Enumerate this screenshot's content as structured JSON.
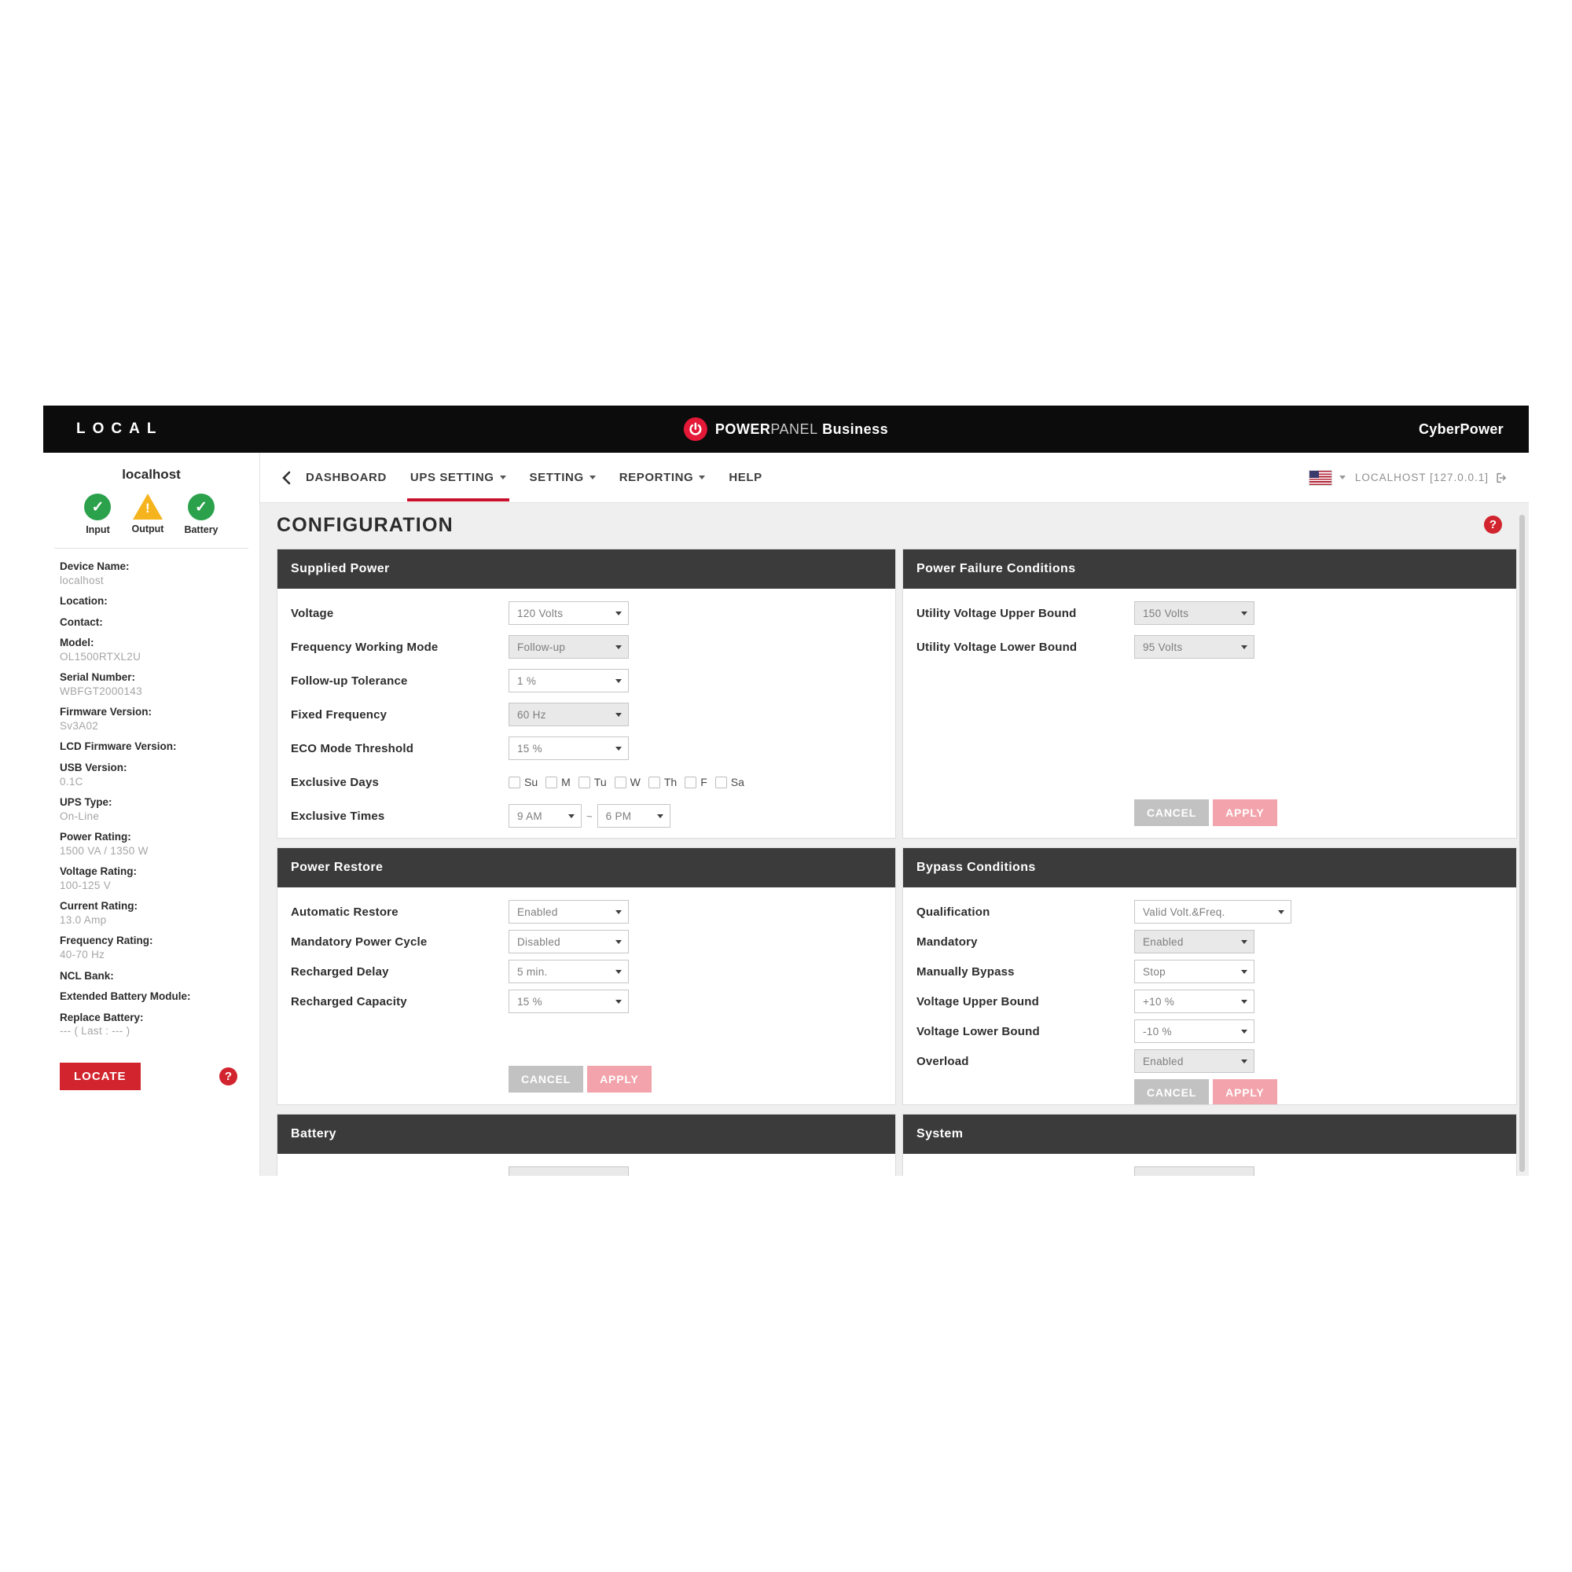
{
  "header": {
    "local": "LOCAL",
    "logo_power": "POWER",
    "logo_panel": "PANEL",
    "logo_business": " Business",
    "brand": "CyberPower"
  },
  "nav": {
    "items": [
      {
        "label": "DASHBOARD",
        "caret": false,
        "active": false
      },
      {
        "label": "UPS SETTING",
        "caret": true,
        "active": true
      },
      {
        "label": "SETTING",
        "caret": true,
        "active": false
      },
      {
        "label": "REPORTING",
        "caret": true,
        "active": false
      },
      {
        "label": "HELP",
        "caret": false,
        "active": false
      }
    ],
    "host": "LOCALHOST [127.0.0.1]",
    "flag_icon": "us-flag",
    "logout_icon": "logout"
  },
  "sidebar": {
    "device_title": "localhost",
    "statuses": [
      {
        "label": "Input",
        "state": "ok"
      },
      {
        "label": "Output",
        "state": "warning"
      },
      {
        "label": "Battery",
        "state": "ok"
      }
    ],
    "info": [
      {
        "label": "Device Name:",
        "value": "localhost"
      },
      {
        "label": "Location:",
        "value": ""
      },
      {
        "label": "Contact:",
        "value": ""
      },
      {
        "label": "Model:",
        "value": "OL1500RTXL2U"
      },
      {
        "label": "Serial Number:",
        "value": "WBFGT2000143"
      },
      {
        "label": "Firmware Version:",
        "value": "Sv3A02"
      },
      {
        "label": "LCD Firmware Version:",
        "value": ""
      },
      {
        "label": "USB Version:",
        "value": "0.1C"
      },
      {
        "label": "UPS Type:",
        "value": "On-Line"
      },
      {
        "label": "Power Rating:",
        "value": "1500 VA / 1350 W"
      },
      {
        "label": "Voltage Rating:",
        "value": "100-125 V"
      },
      {
        "label": "Current Rating:",
        "value": "13.0 Amp"
      },
      {
        "label": "Frequency Rating:",
        "value": "40-70 Hz"
      },
      {
        "label": "NCL Bank:",
        "value": ""
      },
      {
        "label": "Extended Battery Module:",
        "value": ""
      },
      {
        "label": "Replace Battery:",
        "value": "--- ( Last : --- )"
      }
    ],
    "locate_label": "LOCATE"
  },
  "main": {
    "title": "CONFIGURATION",
    "buttons": {
      "cancel": "CANCEL",
      "apply": "APPLY"
    },
    "panels": [
      {
        "title": "Supplied Power",
        "fields": [
          {
            "type": "select",
            "label": "Voltage",
            "value": "120 Volts",
            "disabled": false
          },
          {
            "type": "select",
            "label": "Frequency Working Mode",
            "value": "Follow-up",
            "disabled": true
          },
          {
            "type": "select",
            "label": "Follow-up Tolerance",
            "value": "1 %",
            "disabled": false
          },
          {
            "type": "select",
            "label": "Fixed Frequency",
            "value": "60 Hz",
            "disabled": true
          },
          {
            "type": "select",
            "label": "ECO Mode Threshold",
            "value": "15 %",
            "disabled": false
          },
          {
            "type": "checkboxes",
            "label": "Exclusive Days",
            "options": [
              "Su",
              "M",
              "Tu",
              "W",
              "Th",
              "F",
              "Sa"
            ],
            "checked": []
          },
          {
            "type": "timerange",
            "label": "Exclusive Times",
            "from": "9 AM",
            "separator": "~",
            "to": "6 PM"
          }
        ],
        "has_buttons": true
      },
      {
        "title": "Power Failure Conditions",
        "fields": [
          {
            "type": "select",
            "label": "Utility Voltage Upper Bound",
            "value": "150 Volts",
            "disabled": true
          },
          {
            "type": "select",
            "label": "Utility Voltage Lower Bound",
            "value": "95 Volts",
            "disabled": true
          }
        ],
        "has_buttons": true
      },
      {
        "title": "Power Restore",
        "fields": [
          {
            "type": "select",
            "label": "Automatic Restore",
            "value": "Enabled",
            "disabled": false
          },
          {
            "type": "select",
            "label": "Mandatory Power Cycle",
            "value": "Disabled",
            "disabled": false
          },
          {
            "type": "select",
            "label": "Recharged Delay",
            "value": "5 min.",
            "disabled": false
          },
          {
            "type": "select",
            "label": "Recharged Capacity",
            "value": "15 %",
            "disabled": false
          }
        ],
        "has_buttons": true
      },
      {
        "title": "Bypass Conditions",
        "fields": [
          {
            "type": "select",
            "label": "Qualification",
            "value": "Valid Volt.&Freq.",
            "disabled": false,
            "wide": true
          },
          {
            "type": "select",
            "label": "Mandatory",
            "value": "Enabled",
            "disabled": true
          },
          {
            "type": "select",
            "label": "Manually Bypass",
            "value": "Stop",
            "disabled": false
          },
          {
            "type": "select",
            "label": "Voltage Upper Bound",
            "value": "+10 %",
            "disabled": false
          },
          {
            "type": "select",
            "label": "Voltage Lower Bound",
            "value": "-10 %",
            "disabled": false
          },
          {
            "type": "select",
            "label": "Overload",
            "value": "Enabled",
            "disabled": true
          }
        ],
        "has_buttons": true
      },
      {
        "title": "Battery",
        "fields": [],
        "has_buttons": false,
        "truncated": true
      },
      {
        "title": "System",
        "fields": [],
        "has_buttons": false,
        "truncated": true
      }
    ]
  },
  "colors": {
    "accent_red": "#c8102e",
    "button_red": "#d2242e",
    "apply_pink": "#f2a3ab",
    "cancel_gray": "#c2c2c2",
    "panel_header": "#3b3b3b",
    "main_bg": "#efefef",
    "status_ok_green": "#2ba14b",
    "status_warn_yellow": "#f5b31d"
  }
}
